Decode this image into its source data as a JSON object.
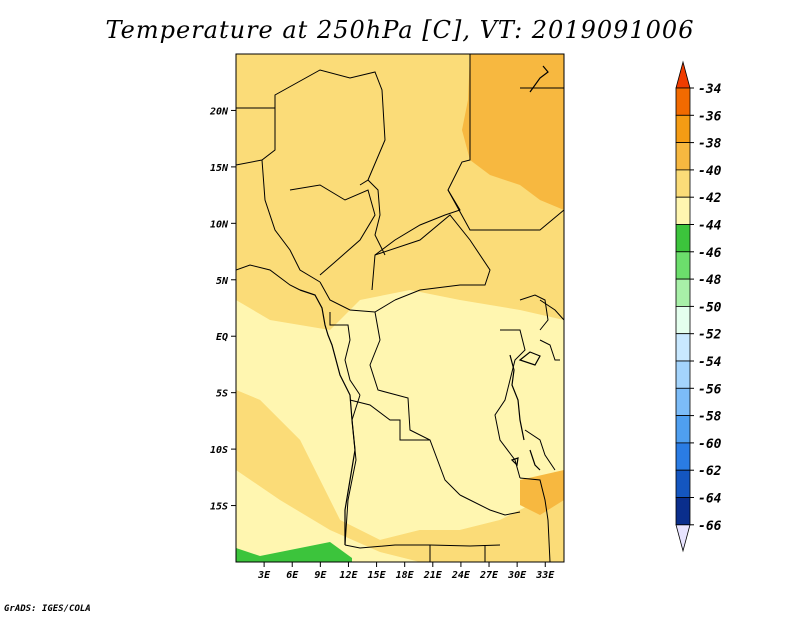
{
  "title": "Temperature at 250hPa [C], VT: 2019091006",
  "credit": "GrADS: IGES/COLA",
  "map": {
    "lat_labels": [
      "20N",
      "15N",
      "10N",
      "5N",
      "EQ",
      "5S",
      "10S",
      "15S"
    ],
    "lon_labels": [
      "3E",
      "6E",
      "9E",
      "12E",
      "15E",
      "18E",
      "21E",
      "24E",
      "27E",
      "30E",
      "33E"
    ],
    "lat_values": [
      20,
      15,
      10,
      5,
      0,
      -5,
      -10,
      -15
    ],
    "lon_values": [
      3,
      6,
      9,
      12,
      15,
      18,
      21,
      24,
      27,
      30,
      33
    ],
    "extent": {
      "lon_min": 0,
      "lon_max": 35,
      "lat_min": -20,
      "lat_max": 25
    }
  },
  "colorbar": {
    "labels": [
      "-34",
      "-36",
      "-38",
      "-40",
      "-42",
      "-44",
      "-46",
      "-48",
      "-50",
      "-52",
      "-54",
      "-56",
      "-58",
      "-60",
      "-62",
      "-64",
      "-66"
    ],
    "colors": [
      "#f04a00",
      "#f26a00",
      "#f59c14",
      "#f7b840",
      "#fbdc78",
      "#fff6b0",
      "#3cc43c",
      "#6cde6c",
      "#a8f0a8",
      "#e4ffee",
      "#c8e8ff",
      "#a4d4fc",
      "#7cbcf8",
      "#4f9ff0",
      "#2a7ce4",
      "#1456c0",
      "#0a2e8c",
      "#08106a"
    ],
    "top_arrow_color": "#f03c00",
    "bottom_arrow_color": "#e8e4ff"
  },
  "field_colors": {
    "deep": "#f7b840",
    "mid": "#fbdc78",
    "light": "#fff6b0",
    "green": "#3cc43c"
  }
}
